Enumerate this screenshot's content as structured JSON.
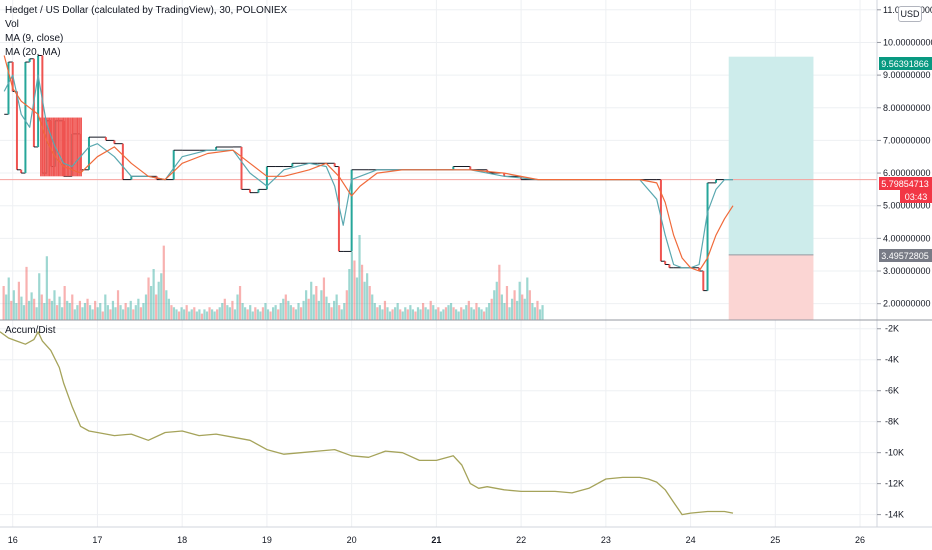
{
  "header": {
    "title": "Hedget / US Dollar (calculated by TradingView), 30, POLONIEX",
    "indicators": [
      "Vol",
      "MA (9, close)",
      "MA (20, MA)"
    ],
    "currency_badge": "USD",
    "lower_pane_title": "Accum/Dist"
  },
  "colors": {
    "up": "#26a69a",
    "down": "#ef5350",
    "ma9": "#5aa8b0",
    "ma20": "#f06a3a",
    "accum": "#a5a35a",
    "grid": "#eef0f3",
    "price_line": "#f6a19b",
    "target_zone": "#cdeceb",
    "stop_zone": "#fbd5d3",
    "target_tag": "#089981",
    "price_tag": "#f23645",
    "stop_tag": "#787b86"
  },
  "tags": {
    "target": "9.56391866",
    "current": "5.79854713",
    "countdown": "03:43",
    "stop": "3.49572805"
  },
  "chart_data": [
    {
      "type": "line",
      "title": "Hedget / US Dollar (calculated by TradingView), 30, POLONIEX",
      "x_ticks": [
        "16",
        "17",
        "18",
        "19",
        "20",
        "21",
        "22",
        "23",
        "24",
        "25",
        "26"
      ],
      "y_ticks": [
        "2.00000000",
        "3.00000000",
        "4.00000000",
        "5.00000000",
        "6.00000000",
        "7.00000000",
        "8.00000000",
        "9.00000000",
        "10.00000000",
        "11.00000000"
      ],
      "ylim": [
        1.5,
        11.3
      ],
      "xlim": [
        15.85,
        26.2
      ],
      "series": [
        {
          "kind": "price",
          "x": [
            15.9,
            15.95,
            16.0,
            16.05,
            16.1,
            16.15,
            16.2,
            16.25,
            16.3,
            16.35,
            16.4,
            16.45,
            16.5,
            16.6,
            16.7,
            16.8,
            16.9,
            17.0,
            17.1,
            17.2,
            17.3,
            17.4,
            17.5,
            17.6,
            17.7,
            17.8,
            17.9,
            18.0,
            18.2,
            18.4,
            18.6,
            18.7,
            18.8,
            18.9,
            19.0,
            19.1,
            19.2,
            19.3,
            19.4,
            19.5,
            19.6,
            19.7,
            19.8,
            19.85,
            19.9,
            20.0,
            20.2,
            20.4,
            20.6,
            20.8,
            21.0,
            21.2,
            21.4,
            21.6,
            21.8,
            22.0,
            22.2,
            22.4,
            22.6,
            22.8,
            23.0,
            23.2,
            23.4,
            23.6,
            23.65,
            23.7,
            23.75,
            23.8,
            23.9,
            24.0,
            24.1,
            24.15,
            24.2,
            24.3,
            24.4,
            24.5
          ],
          "values": [
            7.8,
            9.4,
            8.5,
            6.1,
            6.0,
            9.4,
            9.5,
            6.8,
            9.6,
            6.0,
            7.6,
            6.2,
            7.6,
            5.9,
            7.2,
            6.1,
            7.1,
            7.1,
            7.0,
            6.9,
            5.8,
            5.9,
            5.9,
            5.9,
            5.8,
            5.8,
            6.7,
            6.7,
            6.7,
            6.8,
            6.8,
            5.5,
            5.4,
            5.5,
            6.2,
            6.2,
            6.2,
            6.3,
            6.3,
            6.3,
            6.3,
            6.3,
            6.2,
            3.6,
            3.6,
            6.1,
            6.1,
            6.1,
            6.1,
            6.1,
            6.1,
            6.2,
            6.1,
            6.0,
            5.9,
            5.8,
            5.8,
            5.8,
            5.8,
            5.8,
            5.8,
            5.8,
            5.8,
            5.8,
            3.3,
            3.2,
            3.1,
            3.1,
            3.1,
            3.1,
            3.0,
            2.4,
            5.7,
            5.8,
            5.8,
            5.8
          ]
        },
        {
          "kind": "ma9",
          "name": "MA (9, close)",
          "x": [
            15.9,
            16.0,
            16.1,
            16.2,
            16.3,
            16.4,
            16.5,
            16.6,
            16.7,
            16.8,
            16.9,
            17.0,
            17.2,
            17.4,
            17.6,
            17.8,
            18.0,
            18.3,
            18.6,
            18.8,
            19.0,
            19.2,
            19.5,
            19.7,
            19.8,
            19.9,
            20.0,
            20.3,
            20.6,
            21.0,
            21.4,
            21.8,
            22.2,
            22.6,
            23.0,
            23.4,
            23.6,
            23.7,
            23.8,
            23.9,
            24.0,
            24.1,
            24.2,
            24.3,
            24.4,
            24.5
          ],
          "values": [
            8.5,
            9.0,
            7.8,
            7.4,
            9.0,
            7.5,
            6.8,
            6.3,
            6.2,
            6.5,
            6.8,
            6.9,
            6.5,
            5.9,
            5.9,
            5.8,
            6.5,
            6.7,
            6.7,
            6.0,
            5.6,
            6.1,
            6.3,
            6.2,
            5.6,
            4.4,
            5.8,
            6.1,
            6.1,
            6.1,
            6.1,
            5.9,
            5.8,
            5.8,
            5.8,
            5.8,
            5.2,
            4.1,
            3.2,
            3.1,
            3.1,
            3.2,
            4.8,
            5.5,
            5.8,
            5.8
          ]
        },
        {
          "kind": "ma20",
          "name": "MA (20, MA)",
          "x": [
            15.9,
            16.0,
            16.1,
            16.2,
            16.3,
            16.4,
            16.5,
            16.6,
            16.8,
            17.0,
            17.2,
            17.4,
            17.6,
            17.8,
            18.0,
            18.3,
            18.6,
            18.8,
            19.0,
            19.2,
            19.5,
            19.7,
            19.85,
            20.0,
            20.1,
            20.3,
            20.6,
            21.0,
            21.4,
            21.8,
            22.2,
            22.6,
            23.0,
            23.4,
            23.6,
            23.7,
            23.8,
            23.9,
            24.0,
            24.1,
            24.2,
            24.3,
            24.4,
            24.5
          ],
          "values": [
            9.6,
            8.6,
            8.2,
            8.0,
            7.8,
            7.0,
            6.5,
            6.2,
            6.0,
            6.5,
            6.8,
            6.3,
            5.9,
            5.8,
            6.3,
            6.6,
            6.7,
            6.3,
            5.9,
            5.9,
            6.1,
            6.3,
            5.9,
            5.3,
            5.6,
            6.0,
            6.1,
            6.1,
            6.1,
            6.0,
            5.8,
            5.8,
            5.8,
            5.8,
            5.7,
            5.1,
            4.1,
            3.4,
            3.1,
            3.0,
            3.4,
            4.1,
            4.6,
            5.0
          ]
        }
      ],
      "volume": {
        "x_start": 15.88,
        "x_step": 0.03,
        "values": [
          16,
          12,
          20,
          9,
          14,
          8,
          18,
          11,
          7,
          25,
          9,
          13,
          10,
          6,
          22,
          12,
          8,
          30,
          10,
          9,
          14,
          7,
          11,
          6,
          16,
          9,
          8,
          12,
          5,
          7,
          9,
          6,
          8,
          10,
          7,
          5,
          9,
          6,
          8,
          4,
          12,
          7,
          5,
          9,
          6,
          14,
          7,
          5,
          8,
          6,
          9,
          5,
          7,
          10,
          6,
          8,
          12,
          20,
          16,
          24,
          12,
          18,
          22,
          35,
          14,
          10,
          7,
          6,
          5,
          4,
          6,
          5,
          7,
          4,
          5,
          6,
          4,
          5,
          3,
          5,
          4,
          6,
          5,
          4,
          5,
          6,
          8,
          10,
          7,
          6,
          9,
          5,
          12,
          16,
          8,
          6,
          5,
          7,
          4,
          6,
          5,
          4,
          6,
          8,
          5,
          4,
          6,
          7,
          5,
          8,
          10,
          12,
          9,
          7,
          6,
          5,
          8,
          6,
          9,
          14,
          10,
          18,
          12,
          16,
          9,
          14,
          20,
          11,
          8,
          6,
          9,
          12,
          7,
          5,
          8,
          14,
          24,
          32,
          28,
          20,
          40,
          26,
          18,
          22,
          16,
          12,
          8,
          6,
          7,
          5,
          9,
          6,
          4,
          5,
          6,
          8,
          5,
          4,
          6,
          5,
          7,
          5,
          4,
          6,
          5,
          8,
          6,
          5,
          9,
          7,
          5,
          6,
          4,
          5,
          6,
          7,
          8,
          6,
          5,
          4,
          6,
          5,
          7,
          9,
          6,
          5,
          8,
          6,
          5,
          4,
          6,
          8,
          10,
          14,
          18,
          26,
          12,
          8,
          16,
          6,
          10,
          14,
          9,
          18,
          12,
          10,
          20,
          14,
          8,
          6,
          9,
          5,
          7
        ]
      },
      "target_zone": {
        "x": [
          24.45,
          25.45
        ],
        "y": [
          3.49572805,
          9.56391866
        ]
      },
      "stop_zone": {
        "x": [
          24.45,
          25.45
        ],
        "y": [
          1.5,
          3.49572805
        ]
      }
    },
    {
      "type": "line",
      "title": "Accum/Dist",
      "y_ticks": [
        "-2K",
        "-4K",
        "-6K",
        "-8K",
        "-10K",
        "-12K",
        "-14K"
      ],
      "ylim": [
        -14.8,
        -1.5
      ],
      "series": [
        {
          "name": "Accum/Dist",
          "x": [
            15.85,
            15.95,
            16.05,
            16.15,
            16.25,
            16.3,
            16.35,
            16.45,
            16.55,
            16.6,
            16.7,
            16.8,
            16.9,
            17.0,
            17.2,
            17.4,
            17.6,
            17.8,
            18.0,
            18.2,
            18.4,
            18.6,
            18.8,
            19.0,
            19.2,
            19.4,
            19.6,
            19.8,
            20.0,
            20.2,
            20.4,
            20.6,
            20.8,
            21.0,
            21.2,
            21.3,
            21.4,
            21.5,
            21.6,
            21.8,
            22.0,
            22.2,
            22.4,
            22.6,
            22.8,
            23.0,
            23.2,
            23.4,
            23.5,
            23.6,
            23.7,
            23.8,
            23.9,
            24.0,
            24.2,
            24.4,
            24.5
          ],
          "values": [
            -2.2,
            -2.6,
            -2.8,
            -3.0,
            -2.7,
            -2.2,
            -2.8,
            -3.4,
            -4.5,
            -5.5,
            -7.0,
            -8.3,
            -8.6,
            -8.7,
            -8.9,
            -8.8,
            -9.2,
            -8.7,
            -8.6,
            -8.9,
            -8.8,
            -9.0,
            -9.2,
            -9.8,
            -10.1,
            -10.0,
            -9.9,
            -9.8,
            -10.2,
            -10.3,
            -9.9,
            -10.0,
            -10.5,
            -10.5,
            -10.2,
            -10.8,
            -12.0,
            -12.3,
            -12.2,
            -12.4,
            -12.5,
            -12.5,
            -12.5,
            -12.6,
            -12.3,
            -11.7,
            -11.6,
            -11.6,
            -11.7,
            -11.9,
            -12.4,
            -13.2,
            -14.0,
            -13.9,
            -13.8,
            -13.8,
            -13.9
          ]
        }
      ]
    }
  ]
}
